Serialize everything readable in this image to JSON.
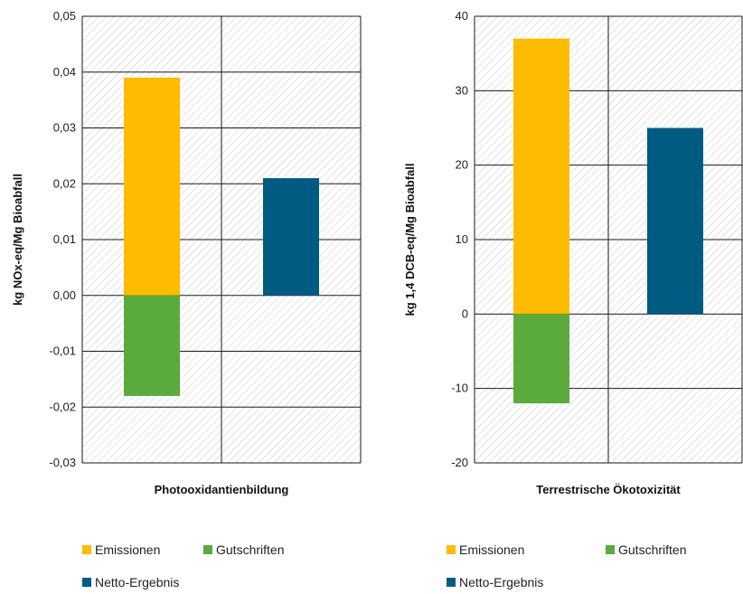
{
  "chart_data": [
    {
      "type": "bar",
      "stacked": true,
      "category": "Photooxidantienbildung",
      "ylabel": "kg NOx-eq/Mg Bioabfall",
      "ylim": [
        -0.03,
        0.05
      ],
      "yticks": [
        "0,05",
        "0,04",
        "0,03",
        "0,02",
        "0,01",
        "0,00",
        "-0,01",
        "-0,02",
        "-0,03"
      ],
      "ytick_values": [
        0.05,
        0.04,
        0.03,
        0.02,
        0.01,
        0.0,
        -0.01,
        -0.02,
        -0.03
      ],
      "series": [
        {
          "name": "Emissionen",
          "bar": 0,
          "value": 0.039,
          "color": "#ffbb00"
        },
        {
          "name": "Gutschriften",
          "bar": 0,
          "value": -0.018,
          "color": "#5aaa3c"
        },
        {
          "name": "Netto-Ergebnis",
          "bar": 1,
          "value": 0.021,
          "color": "#005b82"
        }
      ],
      "grid": true,
      "legend": "bottom",
      "legend_labels": [
        "Emissionen",
        "Gutschriften",
        "Netto-Ergebnis"
      ]
    },
    {
      "type": "bar",
      "stacked": true,
      "category": "Terrestrische Ökotoxizität",
      "ylabel": "kg 1,4 DCB-eq/Mg Bioabfall",
      "ylim": [
        -20,
        40
      ],
      "yticks": [
        "40",
        "30",
        "20",
        "10",
        "0",
        "-10",
        "-20"
      ],
      "ytick_values": [
        40,
        30,
        20,
        10,
        0,
        -10,
        -20
      ],
      "series": [
        {
          "name": "Emissionen",
          "bar": 0,
          "value": 37,
          "color": "#ffbb00"
        },
        {
          "name": "Gutschriften",
          "bar": 0,
          "value": -12,
          "color": "#5aaa3c"
        },
        {
          "name": "Netto-Ergebnis",
          "bar": 1,
          "value": 25,
          "color": "#005b82"
        }
      ],
      "grid": true,
      "legend": "bottom",
      "legend_labels": [
        "Emissionen",
        "Gutschriften",
        "Netto-Ergebnis"
      ]
    }
  ]
}
